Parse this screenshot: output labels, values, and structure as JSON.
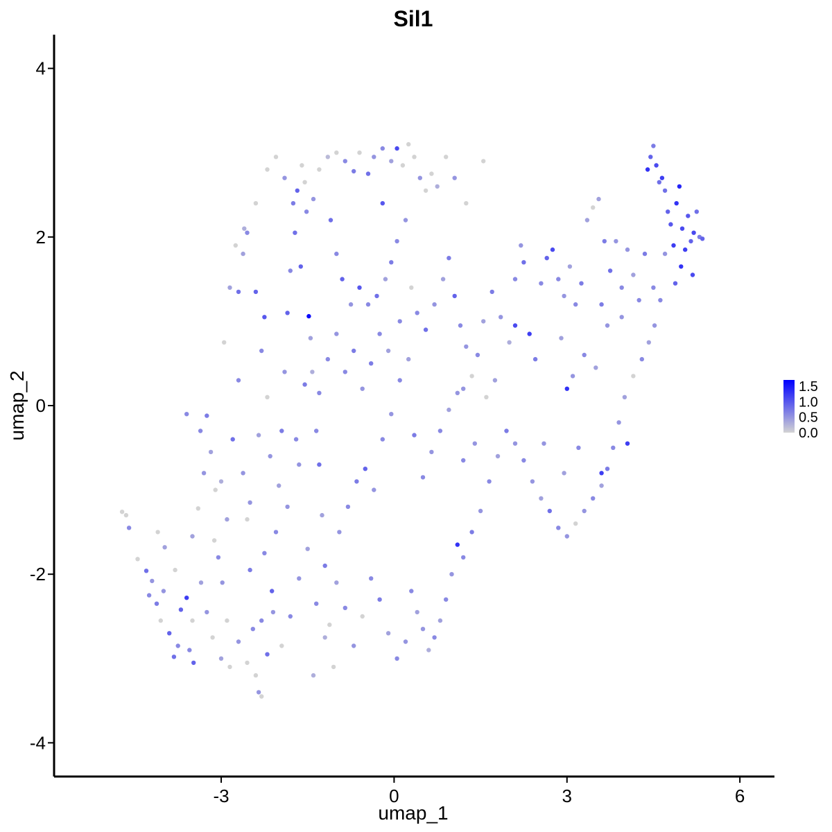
{
  "chart_data": {
    "type": "scatter",
    "title": "Sil1",
    "xlabel": "umap_1",
    "ylabel": "umap_2",
    "xlim": [
      -5.9,
      6.6
    ],
    "ylim": [
      -4.4,
      4.4
    ],
    "x_ticks": [
      -3,
      0,
      3,
      6
    ],
    "x_tick_labels": [
      "-3",
      "0",
      "3",
      "6"
    ],
    "y_ticks": [
      -4,
      -2,
      0,
      2,
      4
    ],
    "y_tick_labels": [
      "-4",
      "-2",
      "0",
      "2",
      "4"
    ],
    "grid": false,
    "legend_position": "right",
    "color_scale": {
      "low_color": "#d3d3d3",
      "high_color": "#0000ff",
      "min": 0,
      "max": 1.7,
      "breaks": [
        0,
        0.5,
        1.0,
        1.5
      ],
      "labels": [
        "0.0",
        "0.5",
        "1.0",
        "1.5"
      ]
    },
    "points": [
      [
        -4.72,
        -1.26,
        0
      ],
      [
        -4.65,
        -1.3,
        0
      ],
      [
        -4.6,
        -1.45,
        0.6
      ],
      [
        -4.45,
        -1.82,
        0
      ],
      [
        -4.3,
        -1.96,
        0.8
      ],
      [
        -4.2,
        -2.08,
        0.5
      ],
      [
        -4.12,
        -2.35,
        0.7
      ],
      [
        -4.05,
        -2.55,
        0
      ],
      [
        -4.1,
        -1.5,
        0
      ],
      [
        -3.98,
        -1.68,
        0.4
      ],
      [
        -3.9,
        -2.7,
        0.9
      ],
      [
        -3.82,
        -2.98,
        0.8
      ],
      [
        -3.7,
        -2.42,
        0.9
      ],
      [
        -3.6,
        -2.28,
        1.2
      ],
      [
        -3.55,
        -2.9,
        0.6
      ],
      [
        -3.48,
        -3.05,
        0.9
      ],
      [
        -3.4,
        -1.22,
        0
      ],
      [
        -3.36,
        -0.3,
        0.6
      ],
      [
        -3.25,
        -0.12,
        0.7
      ],
      [
        -3.18,
        -0.55,
        0.4
      ],
      [
        -3.1,
        -1.0,
        0
      ],
      [
        -3.05,
        -1.8,
        0.6
      ],
      [
        -2.98,
        -2.1,
        0.5
      ],
      [
        -2.9,
        -2.55,
        0
      ],
      [
        -2.85,
        -3.1,
        0
      ],
      [
        -2.8,
        -0.4,
        0.8
      ],
      [
        -2.7,
        0.3,
        0.6
      ],
      [
        -2.62,
        -0.8,
        0.5
      ],
      [
        -2.55,
        -1.35,
        0
      ],
      [
        -2.5,
        -1.95,
        0.7
      ],
      [
        -2.45,
        -2.65,
        0.6
      ],
      [
        -2.4,
        -3.2,
        0
      ],
      [
        -2.35,
        -3.4,
        0.5
      ],
      [
        -2.3,
        -3.45,
        0
      ],
      [
        -2.2,
        -2.95,
        0.8
      ],
      [
        -2.12,
        -2.2,
        0.9
      ],
      [
        -2.05,
        -1.5,
        0.6
      ],
      [
        -2.0,
        -0.95,
        0.4
      ],
      [
        -1.95,
        -0.3,
        0.7
      ],
      [
        -1.9,
        0.4,
        0.5
      ],
      [
        -1.85,
        1.1,
        0.9
      ],
      [
        -1.8,
        1.6,
        0.6
      ],
      [
        -1.72,
        2.05,
        0.8
      ],
      [
        -1.68,
        2.55,
        0.9
      ],
      [
        -1.6,
        2.85,
        0
      ],
      [
        -1.52,
        2.3,
        0.6
      ],
      [
        -1.48,
        1.06,
        1.6
      ],
      [
        -1.42,
        0.4,
        0.3
      ],
      [
        -1.35,
        -0.3,
        0.6
      ],
      [
        -1.3,
        -0.7,
        0.8
      ],
      [
        -1.25,
        -1.3,
        0.4
      ],
      [
        -1.2,
        -1.9,
        0.7
      ],
      [
        -1.12,
        -2.6,
        0
      ],
      [
        -1.05,
        -3.1,
        0
      ],
      [
        -1.4,
        -3.2,
        0.3
      ],
      [
        -2.62,
        1.8,
        0.4
      ],
      [
        -2.55,
        2.05,
        0.6
      ],
      [
        -2.4,
        1.35,
        0.9
      ],
      [
        -2.3,
        0.65,
        0.6
      ],
      [
        -2.2,
        0.1,
        0
      ],
      [
        -2.15,
        -0.6,
        0.5
      ],
      [
        -3.0,
        -0.9,
        0.3
      ],
      [
        -3.12,
        -1.6,
        0
      ],
      [
        -3.35,
        -2.1,
        0.4
      ],
      [
        -3.5,
        -2.55,
        0
      ],
      [
        -3.75,
        -2.85,
        0.6
      ],
      [
        -4.0,
        -2.2,
        0.5
      ],
      [
        -2.95,
        0.75,
        0
      ],
      [
        -2.85,
        1.4,
        0.4
      ],
      [
        -2.75,
        1.9,
        0
      ],
      [
        -2.6,
        2.1,
        0.3
      ],
      [
        -2.4,
        2.4,
        0
      ],
      [
        -2.2,
        2.8,
        0
      ],
      [
        -2.05,
        2.95,
        0
      ],
      [
        -1.9,
        2.7,
        0.5
      ],
      [
        -1.75,
        2.4,
        0.7
      ],
      [
        -1.55,
        2.65,
        0
      ],
      [
        -1.4,
        2.45,
        0.5
      ],
      [
        -1.3,
        2.8,
        0
      ],
      [
        -1.15,
        2.95,
        0.2
      ],
      [
        -1.0,
        3.0,
        0
      ],
      [
        -0.85,
        2.9,
        0.6
      ],
      [
        -0.7,
        2.78,
        0.7
      ],
      [
        -0.6,
        3.0,
        0
      ],
      [
        -0.45,
        2.75,
        0.8
      ],
      [
        -0.35,
        2.95,
        0.5
      ],
      [
        -0.2,
        3.05,
        0.6
      ],
      [
        -0.05,
        2.9,
        0.4
      ],
      [
        0.05,
        3.05,
        1.1
      ],
      [
        0.15,
        2.85,
        0
      ],
      [
        0.25,
        3.1,
        0
      ],
      [
        0.35,
        2.95,
        0
      ],
      [
        0.45,
        2.7,
        0.5
      ],
      [
        0.55,
        2.55,
        0
      ],
      [
        0.65,
        2.75,
        0
      ],
      [
        0.75,
        2.6,
        0.3
      ],
      [
        0.9,
        2.95,
        0
      ],
      [
        1.05,
        2.7,
        0.5
      ],
      [
        1.25,
        2.4,
        0
      ],
      [
        1.55,
        2.9,
        0
      ],
      [
        -1.1,
        2.2,
        0.8
      ],
      [
        -1.0,
        1.8,
        0.6
      ],
      [
        -0.9,
        1.5,
        0.9
      ],
      [
        -0.75,
        1.2,
        0.5
      ],
      [
        -0.6,
        1.4,
        1.0
      ],
      [
        -0.45,
        1.2,
        0.6
      ],
      [
        -0.3,
        1.3,
        0.8
      ],
      [
        -0.15,
        1.5,
        0.4
      ],
      [
        -0.05,
        1.7,
        0.7
      ],
      [
        0.05,
        1.95,
        0.6
      ],
      [
        0.2,
        2.2,
        0.5
      ],
      [
        0.3,
        1.4,
        0
      ],
      [
        0.4,
        1.1,
        0.6
      ],
      [
        0.55,
        0.9,
        0.8
      ],
      [
        0.7,
        1.2,
        0.5
      ],
      [
        0.85,
        1.5,
        0.4
      ],
      [
        0.95,
        1.75,
        0.7
      ],
      [
        1.05,
        1.3,
        0.9
      ],
      [
        1.15,
        0.95,
        0.6
      ],
      [
        1.25,
        0.7,
        0.5
      ],
      [
        1.35,
        0.35,
        0
      ],
      [
        1.45,
        0.6,
        0.6
      ],
      [
        1.55,
        1.0,
        0.4
      ],
      [
        1.7,
        1.35,
        0.7
      ],
      [
        1.85,
        1.05,
        0.5
      ],
      [
        2.0,
        0.75,
        0.3
      ],
      [
        2.1,
        1.5,
        0.6
      ],
      [
        2.2,
        1.9,
        0.5
      ],
      [
        2.25,
        1.7,
        0.8
      ],
      [
        2.35,
        0.85,
        1.2
      ],
      [
        2.45,
        0.55,
        0.7
      ],
      [
        2.55,
        1.45,
        0.6
      ],
      [
        2.65,
        1.75,
        0.9
      ],
      [
        2.75,
        1.85,
        1.1
      ],
      [
        2.85,
        1.5,
        0.6
      ],
      [
        2.95,
        1.3,
        0.5
      ],
      [
        3.05,
        1.65,
        0.4
      ],
      [
        3.15,
        1.2,
        0.6
      ],
      [
        3.25,
        1.45,
        0.7
      ],
      [
        3.35,
        2.2,
        0.4
      ],
      [
        3.45,
        2.35,
        0
      ],
      [
        3.55,
        2.45,
        0.4
      ],
      [
        3.65,
        1.95,
        0.7
      ],
      [
        3.75,
        1.6,
        0.8
      ],
      [
        3.85,
        1.95,
        0.5
      ],
      [
        3.95,
        1.4,
        0.6
      ],
      [
        4.05,
        1.85,
        0.5
      ],
      [
        4.15,
        1.55,
        0.4
      ],
      [
        4.25,
        1.25,
        0.6
      ],
      [
        4.35,
        1.8,
        0.7
      ],
      [
        4.4,
        2.8,
        1.3
      ],
      [
        4.45,
        2.95,
        0.9
      ],
      [
        4.5,
        3.08,
        0.7
      ],
      [
        4.55,
        2.85,
        1.1
      ],
      [
        4.6,
        2.65,
        0.8
      ],
      [
        4.65,
        2.7,
        1.2
      ],
      [
        4.7,
        2.55,
        0.8
      ],
      [
        4.75,
        2.3,
        0.9
      ],
      [
        4.8,
        2.15,
        1.0
      ],
      [
        4.85,
        1.9,
        1.2
      ],
      [
        4.9,
        2.4,
        1.3
      ],
      [
        4.95,
        2.6,
        1.4
      ],
      [
        5.0,
        2.1,
        1.1
      ],
      [
        5.05,
        1.85,
        1.2
      ],
      [
        5.1,
        2.25,
        1.0
      ],
      [
        5.15,
        1.95,
        0.9
      ],
      [
        5.2,
        2.05,
        1.1
      ],
      [
        5.25,
        2.3,
        0.8
      ],
      [
        5.3,
        2.0,
        0.7
      ],
      [
        4.98,
        1.65,
        1.3
      ],
      [
        4.88,
        1.45,
        0.9
      ],
      [
        4.62,
        1.25,
        0.6
      ],
      [
        4.52,
        0.95,
        0.5
      ],
      [
        4.42,
        0.75,
        0.4
      ],
      [
        4.3,
        0.55,
        0.6
      ],
      [
        4.15,
        0.35,
        0
      ],
      [
        4.0,
        0.1,
        0.4
      ],
      [
        3.9,
        -0.2,
        0.5
      ],
      [
        3.8,
        -0.5,
        0.6
      ],
      [
        3.7,
        -0.75,
        0.7
      ],
      [
        3.6,
        -0.95,
        0.4
      ],
      [
        3.45,
        -1.1,
        0.6
      ],
      [
        3.3,
        -1.25,
        0.5
      ],
      [
        3.15,
        -1.4,
        0
      ],
      [
        3.0,
        -1.55,
        0.5
      ],
      [
        2.85,
        -1.45,
        0.6
      ],
      [
        2.7,
        -1.25,
        0.8
      ],
      [
        2.55,
        -1.1,
        0.4
      ],
      [
        2.4,
        -0.9,
        0.5
      ],
      [
        2.25,
        -0.65,
        0.6
      ],
      [
        2.1,
        -0.45,
        0.5
      ],
      [
        1.95,
        -0.3,
        0.7
      ],
      [
        1.8,
        -0.6,
        0.4
      ],
      [
        1.65,
        -0.9,
        0.6
      ],
      [
        1.5,
        -1.25,
        0.5
      ],
      [
        1.35,
        -1.5,
        0.7
      ],
      [
        1.2,
        -1.8,
        0.6
      ],
      [
        1.1,
        -1.65,
        1.3
      ],
      [
        1.0,
        -2.0,
        0.5
      ],
      [
        0.9,
        -2.3,
        0.6
      ],
      [
        0.8,
        -2.55,
        0.4
      ],
      [
        0.7,
        -2.75,
        0.6
      ],
      [
        0.6,
        -2.9,
        0.3
      ],
      [
        0.5,
        -2.65,
        0.5
      ],
      [
        0.4,
        -2.45,
        0.4
      ],
      [
        0.3,
        -2.2,
        0.6
      ],
      [
        0.2,
        -2.8,
        0.5
      ],
      [
        0.05,
        -3.0,
        0.6
      ],
      [
        -0.1,
        -2.7,
        0.4
      ],
      [
        -0.25,
        -2.3,
        0.7
      ],
      [
        -0.4,
        -2.05,
        0.6
      ],
      [
        -0.55,
        -2.5,
        0
      ],
      [
        -0.7,
        -2.85,
        0.5
      ],
      [
        -0.85,
        -2.4,
        0.6
      ],
      [
        -1.0,
        -2.1,
        0.4
      ],
      [
        -0.95,
        -1.5,
        0.5
      ],
      [
        -0.8,
        -1.2,
        0.6
      ],
      [
        -0.65,
        -0.9,
        0.7
      ],
      [
        -0.5,
        -0.75,
        0.9
      ],
      [
        -0.35,
        -1.0,
        0.5
      ],
      [
        -0.2,
        -0.4,
        0.6
      ],
      [
        -0.05,
        -0.1,
        0.5
      ],
      [
        0.1,
        0.3,
        0.6
      ],
      [
        0.25,
        0.55,
        0.4
      ],
      [
        0.35,
        -0.35,
        0.7
      ],
      [
        0.5,
        -0.85,
        0.6
      ],
      [
        0.65,
        -0.55,
        0.5
      ],
      [
        0.8,
        -0.3,
        0.6
      ],
      [
        0.95,
        -0.05,
        0.4
      ],
      [
        1.1,
        0.15,
        0.5
      ],
      [
        1.2,
        -0.65,
        0.6
      ],
      [
        1.4,
        -0.45,
        0.5
      ],
      [
        1.6,
        0.1,
        0
      ],
      [
        1.75,
        0.3,
        0.4
      ],
      [
        -1.65,
        -0.7,
        0.5
      ],
      [
        -1.55,
        0.25,
        0.7
      ],
      [
        -1.45,
        0.8,
        0.4
      ],
      [
        -1.3,
        0.15,
        0.6
      ],
      [
        -1.15,
        0.55,
        0.6
      ],
      [
        -1.0,
        0.85,
        0.5
      ],
      [
        -0.85,
        0.4,
        0.6
      ],
      [
        -0.7,
        0.65,
        0.7
      ],
      [
        -0.55,
        0.2,
        0.5
      ],
      [
        -0.4,
        0.5,
        0.7
      ],
      [
        -0.25,
        0.85,
        0.6
      ],
      [
        -0.1,
        0.65,
        0.4
      ],
      [
        -2.5,
        -1.15,
        0.5
      ],
      [
        -2.35,
        -0.35,
        0.4
      ],
      [
        -2.25,
        -1.75,
        0.6
      ],
      [
        -2.1,
        -2.45,
        0.5
      ],
      [
        -1.95,
        -2.85,
        0
      ],
      [
        -1.8,
        -2.5,
        0.6
      ],
      [
        -1.65,
        -2.05,
        0.5
      ],
      [
        -1.5,
        -1.7,
        0.4
      ],
      [
        -1.35,
        -2.35,
        0.6
      ],
      [
        -1.2,
        -2.75,
        0.3
      ],
      [
        -3.25,
        -2.45,
        0.5
      ],
      [
        -3.15,
        -2.75,
        0
      ],
      [
        -3.0,
        -3.0,
        0.4
      ],
      [
        -2.7,
        -2.8,
        0.5
      ],
      [
        -2.55,
        -3.05,
        0
      ],
      [
        -2.3,
        -2.55,
        0.6
      ],
      [
        -1.85,
        -1.2,
        0.5
      ],
      [
        -1.7,
        -0.4,
        0.6
      ],
      [
        -2.9,
        -1.35,
        0.4
      ],
      [
        -3.3,
        -0.8,
        0.5
      ],
      [
        -3.6,
        -0.1,
        0.6
      ],
      [
        -3.5,
        -1.55,
        0.4
      ],
      [
        -3.8,
        -1.95,
        0
      ],
      [
        -4.25,
        -2.25,
        0.6
      ],
      [
        3.6,
        1.2,
        0.7
      ],
      [
        3.95,
        1.05,
        0.5
      ],
      [
        4.5,
        1.4,
        0.6
      ],
      [
        4.7,
        1.8,
        0.5
      ],
      [
        5.35,
        1.98,
        0.9
      ],
      [
        5.18,
        1.55,
        1.1
      ],
      [
        2.9,
        0.8,
        0.4
      ],
      [
        3.1,
        0.35,
        0.5
      ],
      [
        3.3,
        0.6,
        0.6
      ],
      [
        3.5,
        0.45,
        0.4
      ],
      [
        3.7,
        0.95,
        0.5
      ],
      [
        3.2,
        -0.5,
        0.6
      ],
      [
        2.95,
        -0.8,
        0.4
      ],
      [
        2.6,
        -0.45,
        0.5
      ],
      [
        3.0,
        0.2,
        1.3
      ],
      [
        4.05,
        -0.45,
        1.2
      ],
      [
        3.6,
        -0.8,
        1.2
      ],
      [
        2.1,
        0.95,
        1.1
      ],
      [
        1.2,
        0.2,
        0.5
      ],
      [
        0.1,
        1.0,
        0.6
      ],
      [
        -0.2,
        2.4,
        1.0
      ],
      [
        -1.62,
        1.65,
        0.9
      ],
      [
        -2.25,
        1.05,
        1.0
      ],
      [
        -2.7,
        1.35,
        0.8
      ]
    ]
  }
}
